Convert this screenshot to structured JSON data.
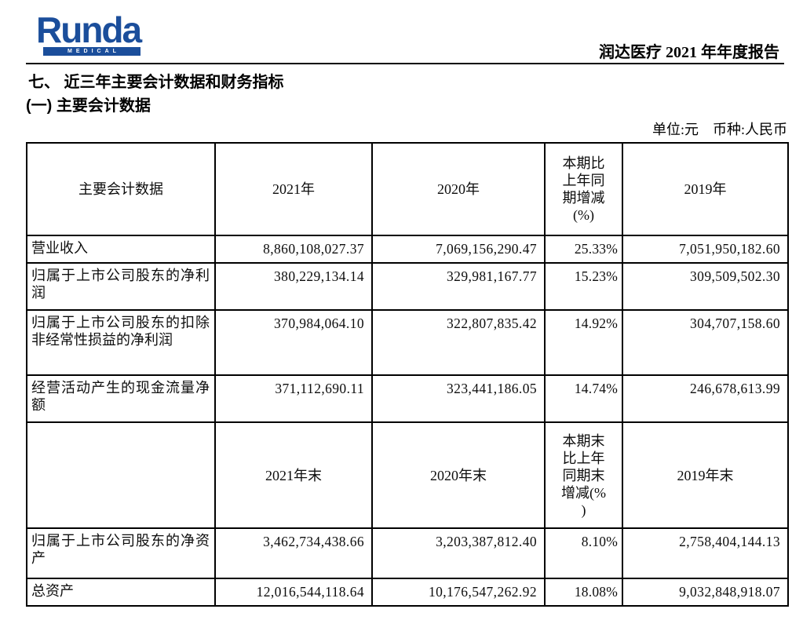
{
  "brand": {
    "logo_text": "Runda",
    "logo_sub": "MEDICAL",
    "logo_color": "#1b4e9b"
  },
  "header": {
    "report_title": "润达医疗 2021 年年度报告"
  },
  "sections": {
    "h1": "七、 近三年主要会计数据和财务指标",
    "h2": "(一) 主要会计数据"
  },
  "unit_note": "单位:元　币种:人民币",
  "table": {
    "rows": [
      {
        "type": "header",
        "cells": [
          "主要会计数据",
          "2021年",
          "2020年",
          "本期比\n上年同\n期增减\n(%)",
          "2019年"
        ]
      },
      {
        "type": "data",
        "cells": [
          "营业收入",
          "8,860,108,027.37",
          "7,069,156,290.47",
          "25.33%",
          "7,051,950,182.60"
        ]
      },
      {
        "type": "data",
        "cells": [
          "归属于上市公司股东的净利润",
          "380,229,134.14",
          "329,981,167.77",
          "15.23%",
          "309,509,502.30"
        ]
      },
      {
        "type": "data",
        "cells": [
          "归属于上市公司股东的扣除非经常性损益的净利润",
          "370,984,064.10",
          "322,807,835.42",
          "14.92%",
          "304,707,158.60"
        ]
      },
      {
        "type": "data",
        "cells": [
          "经营活动产生的现金流量净额",
          "371,112,690.11",
          "323,441,186.05",
          "14.74%",
          "246,678,613.99"
        ]
      },
      {
        "type": "header",
        "cells": [
          "",
          "2021年末",
          "2020年末",
          "本期末\n比上年\n同期末\n增减(%\n)",
          "2019年末"
        ]
      },
      {
        "type": "data",
        "cells": [
          "归属于上市公司股东的净资产",
          "3,462,734,438.66",
          "3,203,387,812.40",
          "8.10%",
          "2,758,404,144.13"
        ]
      },
      {
        "type": "data",
        "cells": [
          "总资产",
          "12,016,544,118.64",
          "10,176,547,262.92",
          "18.08%",
          "9,032,848,918.07"
        ]
      }
    ]
  }
}
